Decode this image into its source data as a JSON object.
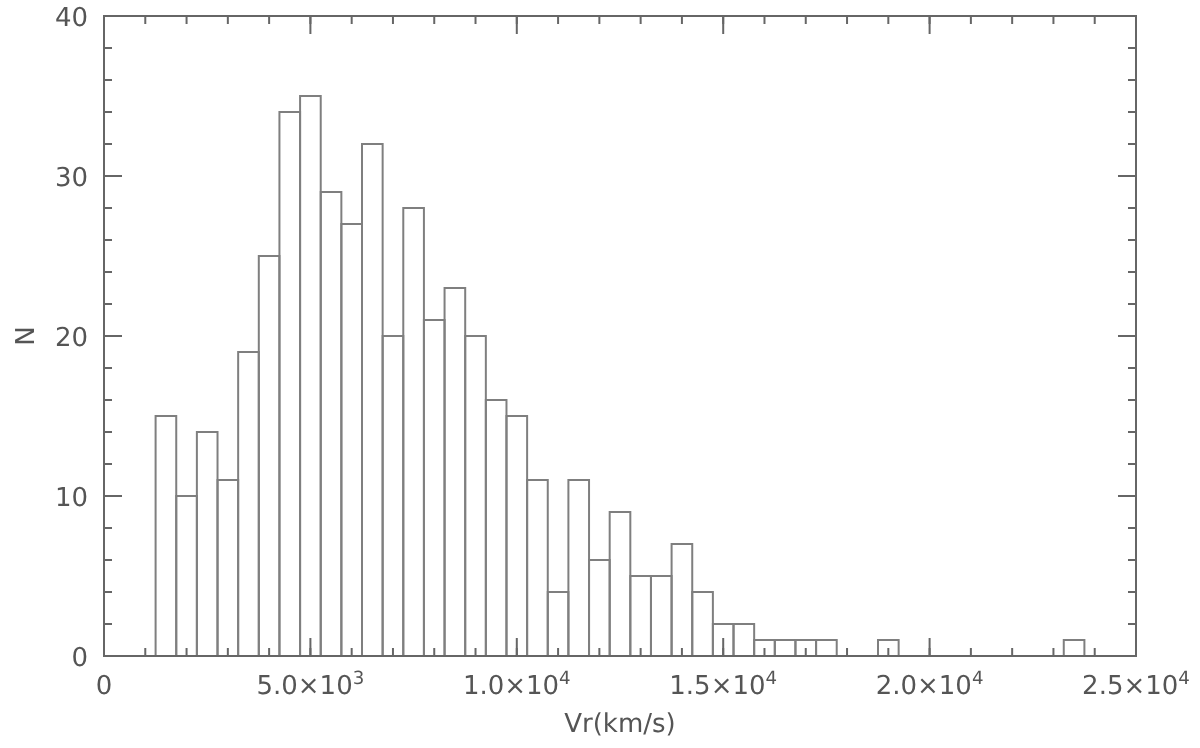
{
  "chart_data": {
    "type": "histogram",
    "xlabel": "Vr(km/s)",
    "ylabel": "N",
    "color": "#7f7f7f",
    "bins": [
      1250,
      1750,
      2250,
      2750,
      3250,
      3750,
      4250,
      4750,
      5250,
      5750,
      6250,
      6750,
      7250,
      7750,
      8250,
      8750,
      9250,
      9750,
      10250,
      10750,
      11250,
      11750,
      12250,
      12750,
      13250,
      13750,
      14250,
      14750,
      15250,
      15750,
      16250,
      16750,
      17250,
      17750,
      18250,
      18750,
      19250,
      19750,
      20250,
      20750,
      21250,
      21750,
      22250,
      22750,
      23250,
      23750
    ],
    "values": [
      15,
      10,
      14,
      11,
      19,
      25,
      34,
      35,
      29,
      27,
      32,
      20,
      28,
      21,
      23,
      20,
      16,
      15,
      11,
      4,
      11,
      6,
      9,
      5,
      5,
      7,
      4,
      2,
      2,
      1,
      1,
      1,
      1,
      0,
      0,
      1,
      0,
      0,
      0,
      0,
      0,
      0,
      0,
      0,
      1
    ],
    "xlim": [
      0,
      25000
    ],
    "xticks": [
      0,
      {
        "value": 5000,
        "label": "5.0×10$^{3}$"
      },
      {
        "value": 10000,
        "label": "1.0×10$^{4}$"
      },
      {
        "value": 15000,
        "label": "1.5×10$^{4}$"
      },
      {
        "value": 20000,
        "label": "2.0×10$^{4}$"
      },
      {
        "value": 25000,
        "label": "2.5×10$^{4}$"
      }
    ],
    "ylim": [
      0,
      40
    ],
    "yticks": [
      0,
      10,
      20,
      30,
      40
    ],
    "grid": false
  }
}
